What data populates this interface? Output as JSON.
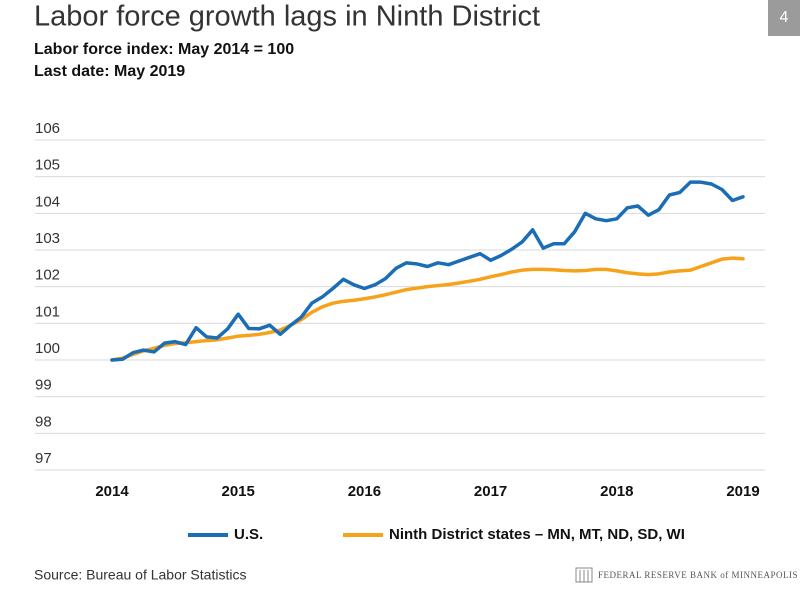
{
  "chart_data": {
    "type": "line",
    "title": "Labor force growth lags in Ninth District",
    "subtitle": [
      "Labor force index: May 2014 = 100",
      "Last date: May 2019"
    ],
    "page_number": "4",
    "source": "Source: Bureau of Labor Statistics",
    "footer_logo": "FEDERAL RESERVE BANK of MINNEAPOLIS",
    "categories": [
      "2014",
      null,
      null,
      null,
      null,
      null,
      null,
      null,
      null,
      null,
      null,
      null,
      "2015",
      null,
      null,
      null,
      null,
      null,
      null,
      null,
      null,
      null,
      null,
      null,
      "2016",
      null,
      null,
      null,
      null,
      null,
      null,
      null,
      null,
      null,
      null,
      null,
      "2017",
      null,
      null,
      null,
      null,
      null,
      null,
      null,
      null,
      null,
      null,
      null,
      "2018",
      null,
      null,
      null,
      null,
      null,
      null,
      null,
      null,
      null,
      null,
      null,
      "2019"
    ],
    "ylim": [
      97,
      106
    ],
    "yticks": [
      97,
      98,
      99,
      100,
      101,
      102,
      103,
      104,
      105,
      106
    ],
    "grid": true,
    "legend": "bottom",
    "series": [
      {
        "name": "U.S.",
        "color": "#1b6db5",
        "values": [
          100.0,
          100.02,
          100.2,
          100.27,
          100.22,
          100.46,
          100.5,
          100.42,
          100.88,
          100.63,
          100.6,
          100.85,
          101.25,
          100.86,
          100.85,
          100.95,
          100.7,
          100.95,
          101.17,
          101.55,
          101.72,
          101.95,
          102.2,
          102.05,
          101.95,
          102.05,
          102.22,
          102.5,
          102.65,
          102.62,
          102.55,
          102.65,
          102.6,
          102.7,
          102.8,
          102.9,
          102.72,
          102.85,
          103.02,
          103.22,
          103.55,
          103.05,
          103.17,
          103.17,
          103.5,
          104.0,
          103.85,
          103.8,
          103.85,
          104.15,
          104.2,
          103.95,
          104.1,
          104.5,
          104.57,
          104.85,
          104.85,
          104.8,
          104.65,
          104.35,
          104.45
        ]
      },
      {
        "name": "Ninth District states – MN, MT, ND, SD, WI",
        "color": "#f7a21b",
        "values": [
          100.0,
          100.05,
          100.15,
          100.25,
          100.32,
          100.4,
          100.45,
          100.47,
          100.5,
          100.53,
          100.55,
          100.6,
          100.65,
          100.67,
          100.7,
          100.75,
          100.82,
          100.95,
          101.1,
          101.3,
          101.45,
          101.55,
          101.6,
          101.63,
          101.67,
          101.72,
          101.78,
          101.85,
          101.92,
          101.96,
          102.0,
          102.03,
          102.06,
          102.1,
          102.15,
          102.2,
          102.27,
          102.33,
          102.4,
          102.45,
          102.47,
          102.47,
          102.46,
          102.44,
          102.43,
          102.44,
          102.47,
          102.47,
          102.43,
          102.38,
          102.35,
          102.33,
          102.35,
          102.4,
          102.43,
          102.45,
          102.55,
          102.65,
          102.75,
          102.78,
          102.76
        ]
      }
    ]
  }
}
